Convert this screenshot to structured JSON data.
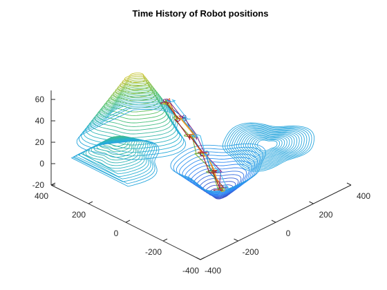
{
  "chart_data": {
    "type": "contour3d",
    "title": "Time History of Robot positions",
    "xlabel": "",
    "ylabel": "",
    "zlabel": "",
    "xlim": [
      -400,
      400
    ],
    "ylim": [
      -400,
      400
    ],
    "zlim": [
      -30,
      70
    ],
    "x_ticks": [
      "-400",
      "-200",
      "0",
      "200",
      "400"
    ],
    "y_ticks": [
      "400",
      "200",
      "0",
      "-200",
      "-400"
    ],
    "z_ticks": [
      "60",
      "40",
      "20",
      "0",
      "-20"
    ],
    "colormap": [
      "#3e26a8",
      "#2e87f7",
      "#26b0d4",
      "#4ac16d",
      "#bdbe28",
      "#fdea25"
    ],
    "surface_features": [
      {
        "kind": "peak",
        "x": -100,
        "y": 250,
        "height": 55
      },
      {
        "kind": "ridge",
        "x": -300,
        "y": 150,
        "height": 25
      },
      {
        "kind": "pit",
        "x": 0,
        "y": -100,
        "height": -25
      },
      {
        "kind": "basin",
        "x": 200,
        "y": -150,
        "height": 5
      }
    ],
    "series": [
      {
        "path": [
          [
            -60,
            120
          ],
          [
            -30,
            60
          ],
          [
            -20,
            20
          ],
          [
            -10,
            -20
          ],
          [
            0,
            -60
          ],
          [
            10,
            -100
          ]
        ],
        "color": "#0072bd"
      },
      {
        "path": [
          [
            -50,
            120
          ],
          [
            -35,
            80
          ],
          [
            -15,
            30
          ],
          [
            -5,
            -10
          ],
          [
            5,
            -70
          ],
          [
            15,
            -95
          ]
        ],
        "color": "#d95319"
      },
      {
        "path": [
          [
            -70,
            110
          ],
          [
            -40,
            70
          ],
          [
            -25,
            20
          ],
          [
            -10,
            -30
          ],
          [
            -5,
            -80
          ],
          [
            5,
            -110
          ]
        ],
        "color": "#edb120"
      },
      {
        "path": [
          [
            -55,
            130
          ],
          [
            -20,
            70
          ],
          [
            -15,
            10
          ],
          [
            0,
            -30
          ],
          [
            10,
            -80
          ],
          [
            20,
            -100
          ]
        ],
        "color": "#7e2f8e"
      },
      {
        "path": [
          [
            -65,
            125
          ],
          [
            -45,
            90
          ],
          [
            -30,
            40
          ],
          [
            -20,
            -10
          ],
          [
            -10,
            -60
          ],
          [
            0,
            -105
          ]
        ],
        "color": "#77ac30"
      },
      {
        "path": [
          [
            -45,
            115
          ],
          [
            -25,
            55
          ],
          [
            -10,
            15
          ],
          [
            5,
            -25
          ],
          [
            15,
            -75
          ],
          [
            25,
            -110
          ]
        ],
        "color": "#4dbeee"
      },
      {
        "path": [
          [
            -75,
            120
          ],
          [
            -50,
            75
          ],
          [
            -35,
            25
          ],
          [
            -15,
            -20
          ],
          [
            -5,
            -65
          ],
          [
            -10,
            -100
          ]
        ],
        "color": "#a2142f"
      }
    ]
  }
}
